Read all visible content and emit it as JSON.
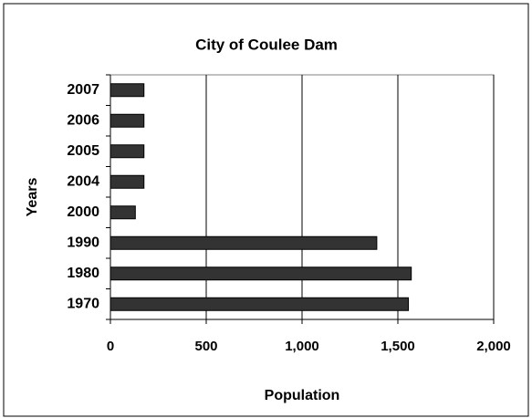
{
  "chart_data": {
    "type": "bar",
    "orientation": "horizontal",
    "title": "City of Coulee Dam",
    "x_label": "Population",
    "y_label": "Years",
    "categories": [
      "2007",
      "2006",
      "2005",
      "2004",
      "2000",
      "1990",
      "1980",
      "1970"
    ],
    "values": [
      175,
      175,
      175,
      175,
      130,
      1390,
      1570,
      1555
    ],
    "color": "#333333",
    "xlim": [
      0,
      2000
    ],
    "xticks": [
      0,
      500,
      {
        "value": 1000,
        "label": "1,000"
      },
      {
        "value": 1500,
        "label": "1,500"
      },
      {
        "value": 2000,
        "label": "2,000"
      }
    ],
    "grid": true
  }
}
